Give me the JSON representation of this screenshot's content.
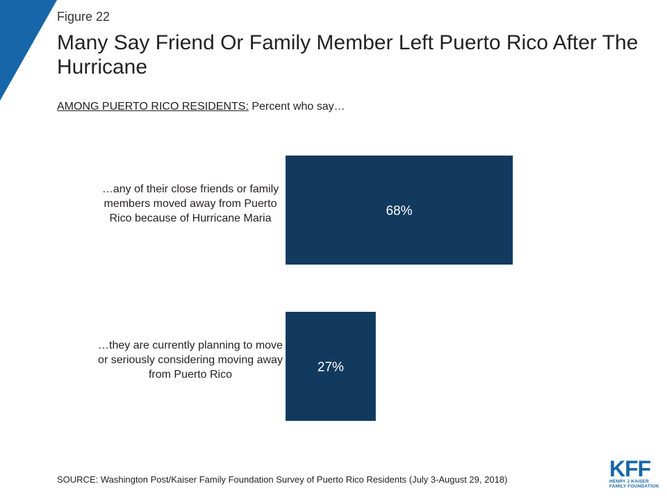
{
  "figure_label": "Figure 22",
  "title": "Many Say Friend Or Family Member Left Puerto Rico After The Hurricane",
  "subtitle": {
    "underlined": "AMONG PUERTO RICO RESIDENTS:",
    "rest": " Percent who say…"
  },
  "source": "SOURCE: Washington Post/Kaiser Family Foundation Survey of Puerto Rico Residents (July 3-August 29, 2018)",
  "logo": {
    "mark": "KFF",
    "line1": "HENRY J KAISER",
    "line2": "FAMILY FOUNDATION"
  },
  "colors": {
    "bar": "#123a5e",
    "accent": "#1666a9",
    "bar_label": "#ffffff"
  },
  "chart_data": {
    "type": "bar",
    "orientation": "horizontal",
    "categories": [
      "…any of their close friends or family members moved away from Puerto Rico because of Hurricane Maria",
      "…they are currently planning to move or seriously considering moving away from Puerto Rico"
    ],
    "values": [
      68,
      27
    ],
    "value_labels": [
      "68%",
      "27%"
    ],
    "xlim": [
      0,
      100
    ],
    "grid": false,
    "legend": "none"
  }
}
